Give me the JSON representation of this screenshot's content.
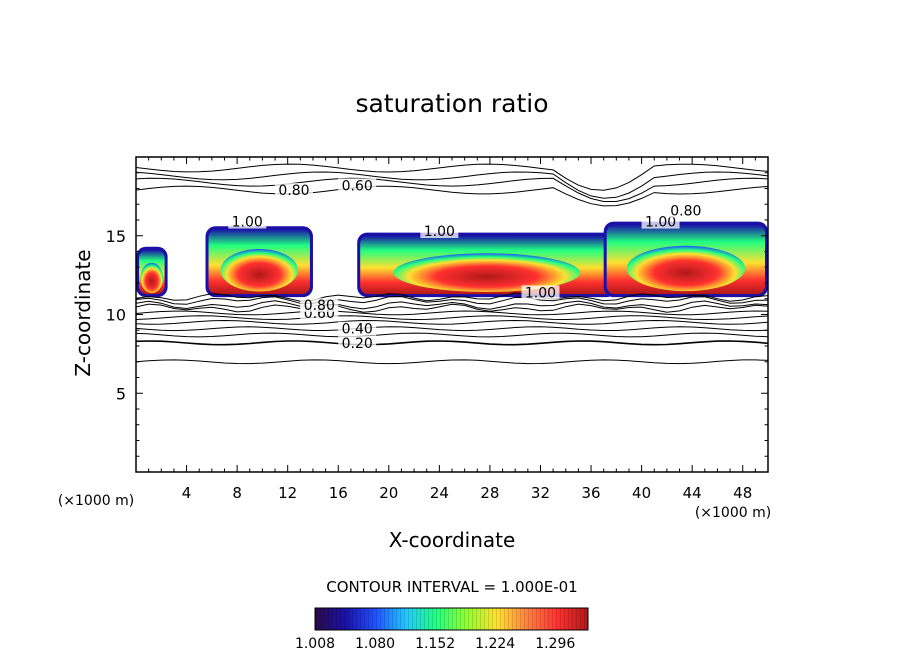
{
  "chart_data": {
    "type": "heatmap",
    "title": "saturation ratio",
    "xlabel": "X-coordinate",
    "ylabel": "Z-coordinate",
    "x_unit": "(×1000 m)",
    "y_unit": "(×1000 m)",
    "xlim": [
      0,
      50
    ],
    "ylim": [
      0,
      20
    ],
    "x_ticks": [
      4,
      8,
      12,
      16,
      20,
      24,
      28,
      32,
      36,
      40,
      44,
      48
    ],
    "y_ticks": [
      5,
      10,
      15
    ],
    "contour_interval_text": "CONTOUR INTERVAL = 1.000E-01",
    "contour_labels": [
      {
        "text": "0.20",
        "x": 17.5,
        "z": 8.2
      },
      {
        "text": "0.40",
        "x": 17.5,
        "z": 9.1
      },
      {
        "text": "0.60",
        "x": 14.5,
        "z": 10.1
      },
      {
        "text": "0.80",
        "x": 14.5,
        "z": 10.6
      },
      {
        "text": "0.60",
        "x": 17.5,
        "z": 18.2
      },
      {
        "text": "0.80",
        "x": 12.5,
        "z": 17.9
      },
      {
        "text": "1.00",
        "x": 8.8,
        "z": 15.9
      },
      {
        "text": "1.00",
        "x": 24.0,
        "z": 15.3
      },
      {
        "text": "1.00",
        "x": 32.0,
        "z": 11.4
      },
      {
        "text": "1.00",
        "x": 41.5,
        "z": 15.9
      },
      {
        "text": "0.80",
        "x": 43.5,
        "z": 16.6
      }
    ],
    "colorbar": {
      "ticks": [
        "1.008",
        "1.080",
        "1.152",
        "1.224",
        "1.296"
      ],
      "min": 1.008,
      "max": 1.33,
      "colors": [
        "#2a0a4a",
        "#1a10a8",
        "#2050ff",
        "#20c8ff",
        "#20ff80",
        "#90ff30",
        "#ffe030",
        "#ff8040",
        "#ff3030",
        "#b01818"
      ]
    },
    "supersaturated_regions": [
      {
        "x": [
          0,
          2.5
        ],
        "z": [
          11.1,
          14.3
        ],
        "peak": 1.32
      },
      {
        "x": [
          5.5,
          14.0
        ],
        "z": [
          11.1,
          15.6
        ],
        "peak": 1.3
      },
      {
        "x": [
          17.5,
          38.0
        ],
        "z": [
          11.1,
          15.2
        ],
        "peak": 1.3
      },
      {
        "x": [
          37.0,
          50.0
        ],
        "z": [
          11.1,
          15.9
        ],
        "peak": 1.3
      }
    ]
  }
}
